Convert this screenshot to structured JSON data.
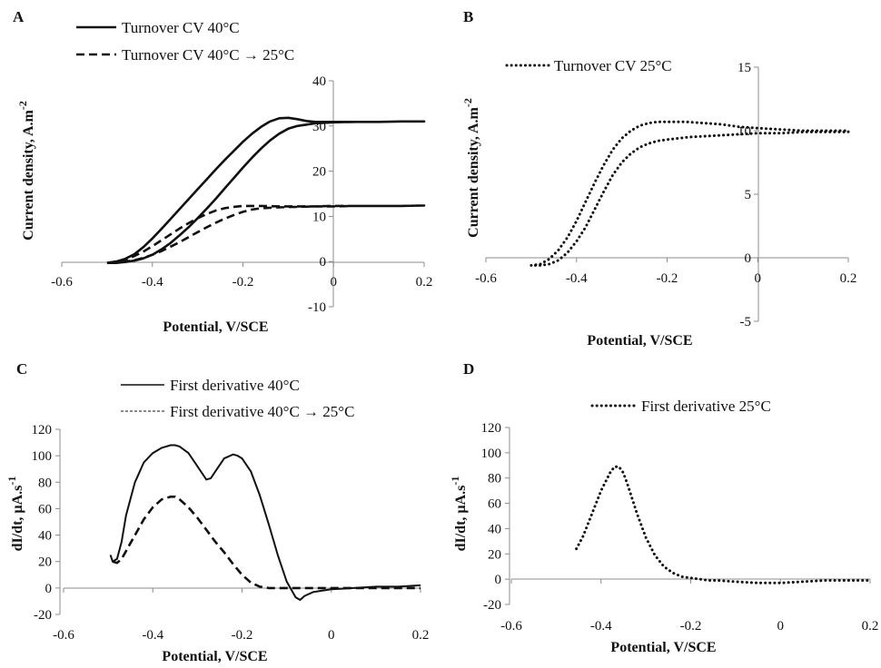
{
  "chart_data": [
    {
      "panel_label": "A",
      "type": "line",
      "xlabel": "Potential, V/SCE",
      "ylabel": "Current density, A.m-2",
      "xlim": [
        -0.6,
        0.2
      ],
      "ylim": [
        -10,
        40
      ],
      "x_ticks": [
        -0.6,
        -0.4,
        -0.2,
        0,
        0.2
      ],
      "y_ticks": [
        -10,
        0,
        10,
        20,
        30,
        40
      ],
      "grid": false,
      "legend_position": "top-left",
      "series": [
        {
          "name": "Turnover CV   40°C",
          "style": "solid",
          "x": [
            -0.5,
            -0.48,
            -0.46,
            -0.44,
            -0.42,
            -0.4,
            -0.38,
            -0.36,
            -0.34,
            -0.32,
            -0.3,
            -0.28,
            -0.26,
            -0.24,
            -0.22,
            -0.2,
            -0.18,
            -0.16,
            -0.14,
            -0.12,
            -0.1,
            -0.08,
            -0.06,
            -0.04,
            0,
            0.05,
            0.1,
            0.15,
            0.2,
            0.2,
            0.15,
            0.1,
            0.05,
            0,
            -0.04,
            -0.08,
            -0.1,
            -0.12,
            -0.14,
            -0.16,
            -0.18,
            -0.2,
            -0.22,
            -0.24,
            -0.26,
            -0.28,
            -0.3,
            -0.32,
            -0.34,
            -0.36,
            -0.38,
            -0.4,
            -0.42,
            -0.44,
            -0.46,
            -0.48,
            -0.5
          ],
          "y": [
            -0.3,
            0.0,
            0.6,
            1.6,
            3.2,
            5.1,
            7.2,
            9.4,
            11.6,
            13.8,
            16.0,
            18.2,
            20.4,
            22.5,
            24.5,
            26.5,
            28.3,
            29.8,
            31.0,
            31.7,
            31.8,
            31.5,
            31.1,
            30.9,
            30.9,
            30.9,
            30.9,
            31.0,
            31.0,
            31.0,
            31.0,
            30.9,
            30.9,
            30.8,
            30.6,
            30.0,
            29.4,
            28.3,
            26.8,
            25.0,
            23.0,
            20.8,
            18.5,
            16.2,
            13.9,
            11.7,
            9.6,
            7.6,
            5.8,
            4.1,
            2.7,
            1.5,
            0.7,
            0.2,
            -0.1,
            -0.3,
            -0.3
          ]
        },
        {
          "name": "Turnover CV   40°C → 25°C",
          "style": "dashed",
          "x": [
            -0.5,
            -0.48,
            -0.46,
            -0.44,
            -0.42,
            -0.4,
            -0.38,
            -0.36,
            -0.34,
            -0.32,
            -0.3,
            -0.28,
            -0.26,
            -0.24,
            -0.22,
            -0.2,
            -0.18,
            -0.16,
            -0.12,
            -0.08,
            -0.04,
            0,
            0.05,
            0.1,
            0.15,
            0.2,
            0.2,
            0.15,
            0.1,
            0.05,
            0,
            -0.04,
            -0.08,
            -0.12,
            -0.16,
            -0.18,
            -0.2,
            -0.22,
            -0.24,
            -0.26,
            -0.28,
            -0.3,
            -0.32,
            -0.34,
            -0.36,
            -0.38,
            -0.4,
            -0.42,
            -0.44,
            -0.46,
            -0.48,
            -0.5
          ],
          "y": [
            -0.3,
            0.0,
            0.4,
            1.2,
            2.2,
            3.4,
            4.7,
            6.0,
            7.3,
            8.5,
            9.6,
            10.5,
            11.3,
            11.8,
            12.1,
            12.3,
            12.3,
            12.3,
            12.2,
            12.2,
            12.2,
            12.3,
            12.3,
            12.3,
            12.3,
            12.4,
            12.4,
            12.3,
            12.3,
            12.3,
            12.2,
            12.2,
            12.1,
            12.0,
            11.8,
            11.5,
            11.0,
            10.3,
            9.5,
            8.6,
            7.6,
            6.5,
            5.4,
            4.3,
            3.3,
            2.3,
            1.5,
            0.8,
            0.3,
            0.0,
            -0.2,
            -0.3
          ]
        }
      ]
    },
    {
      "panel_label": "B",
      "type": "line",
      "xlabel": "Potential, V/SCE",
      "ylabel": "Current density, A.m-2",
      "xlim": [
        -0.6,
        0.2
      ],
      "ylim": [
        -5,
        15
      ],
      "x_ticks": [
        -0.6,
        -0.4,
        -0.2,
        0,
        0.2
      ],
      "y_ticks": [
        -5,
        0,
        5,
        10,
        15
      ],
      "grid": false,
      "legend_position": "top-left",
      "series": [
        {
          "name": "Turnover CV   25°C",
          "style": "dotted",
          "x": [
            -0.5,
            -0.48,
            -0.46,
            -0.44,
            -0.42,
            -0.4,
            -0.38,
            -0.36,
            -0.34,
            -0.32,
            -0.3,
            -0.28,
            -0.26,
            -0.24,
            -0.22,
            -0.2,
            -0.16,
            -0.12,
            -0.08,
            -0.04,
            0,
            0.05,
            0.1,
            0.15,
            0.2,
            0.2,
            0.15,
            0.1,
            0.05,
            0,
            -0.05,
            -0.1,
            -0.15,
            -0.2,
            -0.22,
            -0.24,
            -0.26,
            -0.28,
            -0.3,
            -0.32,
            -0.34,
            -0.36,
            -0.38,
            -0.4,
            -0.42,
            -0.44,
            -0.46,
            -0.48,
            -0.5
          ],
          "y": [
            -0.6,
            -0.5,
            -0.1,
            0.6,
            1.6,
            2.9,
            4.4,
            5.9,
            7.3,
            8.5,
            9.4,
            10.0,
            10.4,
            10.6,
            10.7,
            10.7,
            10.7,
            10.6,
            10.5,
            10.3,
            10.2,
            10.1,
            10.0,
            10.0,
            10.0,
            9.9,
            9.9,
            9.9,
            9.8,
            9.8,
            9.7,
            9.6,
            9.5,
            9.3,
            9.2,
            9.0,
            8.7,
            8.2,
            7.5,
            6.5,
            5.2,
            3.8,
            2.4,
            1.3,
            0.4,
            -0.2,
            -0.5,
            -0.6,
            -0.6
          ]
        }
      ]
    },
    {
      "panel_label": "C",
      "type": "line",
      "xlabel": "Potential, V/SCE",
      "ylabel": "dI/dt, µA.s-1",
      "xlim": [
        -0.6,
        0.2
      ],
      "ylim": [
        -20,
        120
      ],
      "x_ticks": [
        -0.6,
        -0.4,
        -0.2,
        0,
        0.2
      ],
      "y_ticks": [
        -20,
        0,
        20,
        40,
        60,
        80,
        100,
        120
      ],
      "grid": false,
      "legend_position": "top-center",
      "series": [
        {
          "name": "First derivative   40°C",
          "style": "solid",
          "x": [
            -0.495,
            -0.49,
            -0.48,
            -0.47,
            -0.46,
            -0.44,
            -0.42,
            -0.4,
            -0.38,
            -0.36,
            -0.35,
            -0.34,
            -0.32,
            -0.3,
            -0.28,
            -0.27,
            -0.26,
            -0.24,
            -0.22,
            -0.21,
            -0.2,
            -0.18,
            -0.16,
            -0.14,
            -0.12,
            -0.1,
            -0.08,
            -0.07,
            -0.06,
            -0.04,
            -0.02,
            0,
            0.05,
            0.1,
            0.15,
            0.2
          ],
          "y": [
            25,
            20,
            22,
            35,
            55,
            80,
            95,
            102,
            106,
            108,
            108,
            107,
            102,
            92,
            82,
            83,
            88,
            98,
            101,
            100,
            98,
            88,
            70,
            48,
            25,
            5,
            -7,
            -9,
            -6,
            -3,
            -2,
            -1,
            0,
            1,
            1,
            2
          ]
        },
        {
          "name": "First derivative   40°C → 25°C",
          "style": "dashed",
          "x": [
            -0.49,
            -0.48,
            -0.47,
            -0.46,
            -0.44,
            -0.42,
            -0.4,
            -0.38,
            -0.36,
            -0.35,
            -0.34,
            -0.32,
            -0.3,
            -0.28,
            -0.26,
            -0.24,
            -0.22,
            -0.2,
            -0.18,
            -0.16,
            -0.14,
            -0.12,
            -0.1,
            -0.05,
            0,
            0.05,
            0.1,
            0.15,
            0.2
          ],
          "y": [
            20,
            19,
            22,
            28,
            40,
            52,
            61,
            67,
            69,
            69,
            67,
            61,
            53,
            44,
            35,
            27,
            18,
            10,
            4,
            1,
            0,
            0,
            0,
            0,
            0,
            0,
            0,
            0,
            0
          ]
        }
      ]
    },
    {
      "panel_label": "D",
      "type": "line",
      "xlabel": "Potential, V/SCE",
      "ylabel": "dI/dt, µA.s-1",
      "xlim": [
        -0.6,
        0.2
      ],
      "ylim": [
        -20,
        120
      ],
      "x_ticks": [
        -0.6,
        -0.4,
        -0.2,
        0,
        0.2
      ],
      "y_ticks": [
        -20,
        0,
        20,
        40,
        60,
        80,
        100,
        120
      ],
      "grid": false,
      "legend_position": "top-center",
      "series": [
        {
          "name": "First derivative   25°C",
          "style": "dotted",
          "x": [
            -0.455,
            -0.44,
            -0.42,
            -0.4,
            -0.38,
            -0.37,
            -0.36,
            -0.35,
            -0.34,
            -0.32,
            -0.3,
            -0.28,
            -0.26,
            -0.24,
            -0.22,
            -0.2,
            -0.18,
            -0.16,
            -0.14,
            -0.1,
            -0.05,
            0,
            0.05,
            0.1,
            0.15,
            0.2
          ],
          "y": [
            24,
            34,
            52,
            70,
            84,
            89,
            89,
            84,
            74,
            52,
            33,
            19,
            10,
            5,
            2,
            1,
            0,
            -1,
            -1,
            -2,
            -3,
            -3,
            -2,
            -1,
            -1,
            -1
          ]
        }
      ]
    }
  ]
}
